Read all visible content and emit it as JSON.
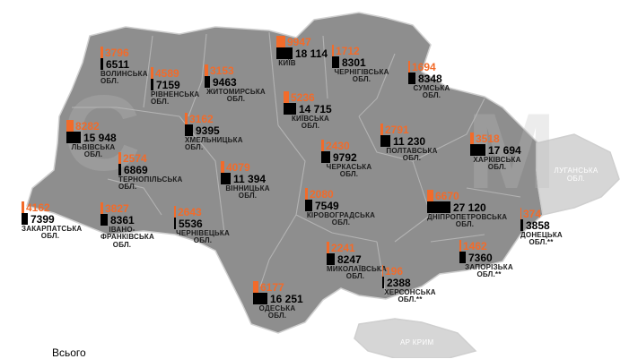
{
  "colors": {
    "map_fill": "#8e8e8e",
    "map_border": "#cfcfcf",
    "occupied_fill": "#d6d6d6",
    "orange": "#f26b2a",
    "black": "#000000"
  },
  "legend": {
    "total_label": "Всього"
  },
  "occupied": {
    "crimea": "АР КРИМ",
    "luhansk": "ЛУГАНСЬКА ОБЛ."
  },
  "regions": [
    {
      "id": "volyn",
      "name": "ВОЛИНСЬКА ОБЛ.",
      "orange": "3796",
      "black": "6511"
    },
    {
      "id": "rivne",
      "name": "РІВНЕНСЬКА ОБЛ.",
      "orange": "4589",
      "black": "7159"
    },
    {
      "id": "zhytomyr",
      "name": "ЖИТОМИРСЬКА ОБЛ.",
      "orange": "3153",
      "black": "9463"
    },
    {
      "id": "kyiv-city",
      "name": "КИЇВ",
      "orange": "9947",
      "black": "18 114"
    },
    {
      "id": "chernihiv",
      "name": "ЧЕРНІГІВСЬКА ОБЛ.",
      "orange": "1712",
      "black": "8301"
    },
    {
      "id": "sumy",
      "name": "СУМСЬКА ОБЛ.",
      "orange": "1694",
      "black": "8348"
    },
    {
      "id": "kyiv-oblast",
      "name": "КИЇВСЬКА ОБЛ.",
      "orange": "5236",
      "black": "14 715"
    },
    {
      "id": "lviv",
      "name": "ЛЬВІВСЬКА ОБЛ.",
      "orange": "8282",
      "black": "15 948"
    },
    {
      "id": "khmelnytskyi",
      "name": "ХМЕЛЬНИЦЬКА ОБЛ.",
      "orange": "3162",
      "black": "9395"
    },
    {
      "id": "poltava",
      "name": "ПОЛТАВСЬКА ОБЛ.",
      "orange": "2791",
      "black": "11 230"
    },
    {
      "id": "kharkiv",
      "name": "ХАРКІВСЬКА ОБЛ.",
      "orange": "3518",
      "black": "17 694"
    },
    {
      "id": "ternopil",
      "name": "ТЕРНОПІЛЬСЬКА ОБЛ.",
      "orange": "2574",
      "black": "6869"
    },
    {
      "id": "cherkasy",
      "name": "ЧЕРКАСЬКА ОБЛ.",
      "orange": "2430",
      "black": "9792"
    },
    {
      "id": "vinnytsia",
      "name": "ВІННИЦЬКА ОБЛ.",
      "orange": "4079",
      "black": "11 394"
    },
    {
      "id": "zakarpattia",
      "name": "ЗАКАРПАТСЬКА ОБЛ.",
      "orange": "4162",
      "black": "7399"
    },
    {
      "id": "ivano-frankivsk",
      "name": "ІВАНО-ФРАНКІВСЬКА ОБЛ.",
      "orange": "3827",
      "black": "8361"
    },
    {
      "id": "chernivtsi",
      "name": "ЧЕРНІВЕЦЬКА ОБЛ.",
      "orange": "2643",
      "black": "5536"
    },
    {
      "id": "kirovohrad",
      "name": "КІРОВОГРАДСЬКА ОБЛ.",
      "orange": "2080",
      "black": "7549"
    },
    {
      "id": "dnipro",
      "name": "ДНІПРОПЕТРОВСЬКА ОБЛ.",
      "orange": "6670",
      "black": "27 120"
    },
    {
      "id": "donetsk",
      "name": "ДОНЕЦЬКА ОБЛ.**",
      "orange": "374",
      "black": "3858"
    },
    {
      "id": "mykolaiv",
      "name": "МИКОЛАЇВСЬКА ОБЛ.",
      "orange": "2241",
      "black": "8247"
    },
    {
      "id": "zaporizhzhia",
      "name": "ЗАПОРІЗЬКА ОБЛ.**",
      "orange": "1462",
      "black": "7360"
    },
    {
      "id": "kherson",
      "name": "ХЕРСОНСЬКА ОБЛ.**",
      "orange": "196",
      "black": "2388"
    },
    {
      "id": "odesa",
      "name": "ОДЕСЬКА ОБЛ.",
      "orange": "6177",
      "black": "16 251"
    }
  ]
}
